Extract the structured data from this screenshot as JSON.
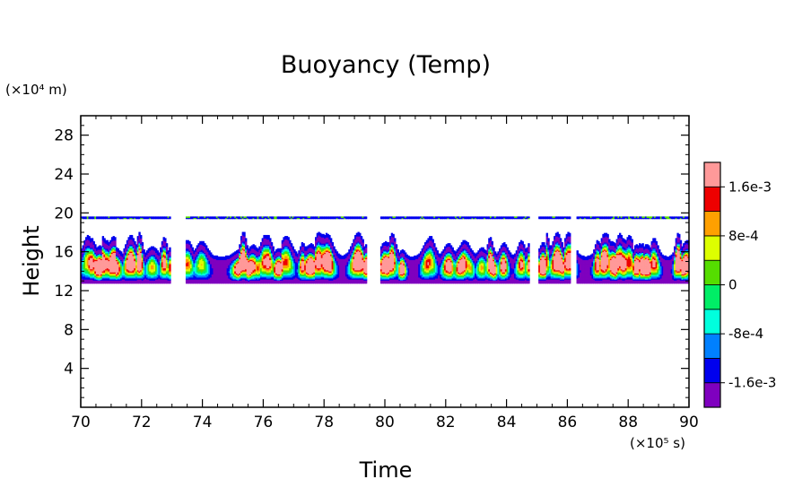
{
  "chart_data": {
    "type": "heatmap",
    "title": "Buoyancy (Temp)",
    "xlabel": "Time",
    "ylabel": "Height",
    "x_unit": "(×10⁵ s)",
    "y_unit": "(×10⁴ m)",
    "xlim": [
      70,
      90
    ],
    "ylim": [
      0,
      30
    ],
    "x_ticks": [
      "70",
      "72",
      "74",
      "76",
      "78",
      "80",
      "82",
      "84",
      "86",
      "88",
      "90"
    ],
    "y_ticks": [
      "4",
      "8",
      "12",
      "16",
      "20",
      "24",
      "28"
    ],
    "colorbar": {
      "levels": [
        -0.002,
        -0.0016,
        -0.0012,
        -0.0008,
        -0.0004,
        0,
        0.0004,
        0.0008,
        0.0012,
        0.0016,
        0.002
      ],
      "colors": [
        "#7f00bf",
        "#0000ee",
        "#0080ff",
        "#00ffdd",
        "#00ee66",
        "#55dd00",
        "#ddff00",
        "#ffa000",
        "#ee0000",
        "#ff9999"
      ],
      "tick_labels": [
        "1.6e-3",
        "8e-4",
        "0",
        "-8e-4",
        "-1.6e-3"
      ],
      "tick_values": [
        0.0016,
        0.0008,
        0,
        -0.0008,
        -0.0016
      ]
    },
    "features": {
      "convective_layer_height": [
        12.8,
        17.5
      ],
      "tropopause_line_height": 19.5,
      "gaps_time": [
        [
          72.95,
          73.45
        ],
        [
          79.4,
          79.85
        ],
        [
          84.75,
          85.05
        ],
        [
          86.1,
          86.3
        ]
      ]
    }
  }
}
